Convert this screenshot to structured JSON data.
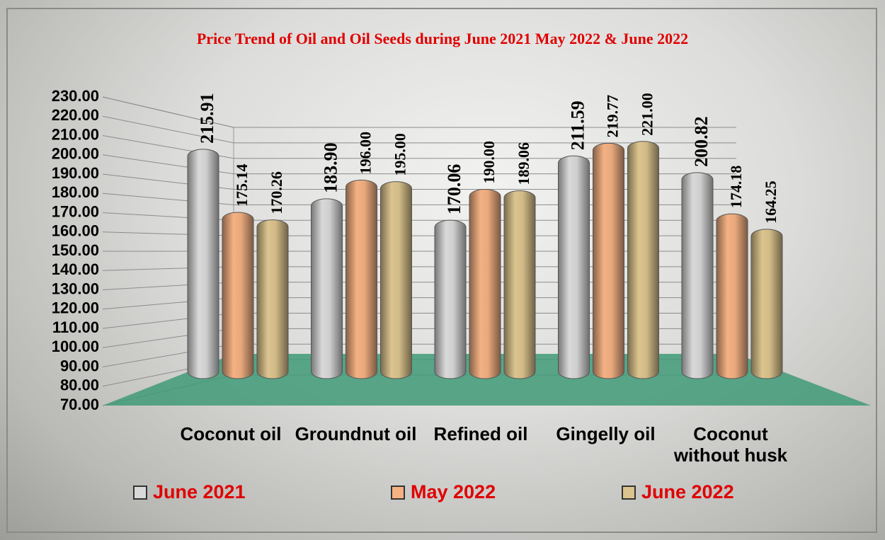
{
  "chart_data": {
    "type": "bar",
    "title": "Price Trend of Oil and Oil Seeds during  June 2021  May 2022  &  June 2022",
    "categories": [
      "Coconut oil",
      "Groundnut oil",
      "Refined oil",
      "Gingelly oil",
      "Coconut without husk"
    ],
    "series": [
      {
        "name": "June 2021",
        "color": "#d9d9d9",
        "values": [
          215.91,
          183.9,
          170.06,
          211.59,
          200.82
        ],
        "value_labels": [
          "215.91",
          "183.90",
          "170.06",
          "211.59",
          "200.82"
        ]
      },
      {
        "name": "May 2022",
        "color": "#f4b183",
        "values": [
          175.14,
          196.0,
          190.0,
          219.77,
          174.18
        ],
        "value_labels": [
          "175.14",
          "196.00",
          "190.00",
          "219.77",
          "174.18"
        ]
      },
      {
        "name": "June 2022",
        "color": "#dcc48e",
        "values": [
          170.26,
          195.0,
          189.06,
          221.0,
          164.25
        ],
        "value_labels": [
          "170.26",
          "195.00",
          "189.06",
          "221.00",
          "164.25"
        ]
      }
    ],
    "ylim": [
      70,
      230
    ],
    "yticks": [
      {
        "value": 70,
        "label": "70.00"
      },
      {
        "value": 80,
        "label": "80.00"
      },
      {
        "value": 90,
        "label": "90.00"
      },
      {
        "value": 100,
        "label": "100.00"
      },
      {
        "value": 110,
        "label": "110.00"
      },
      {
        "value": 120,
        "label": "120.00"
      },
      {
        "value": 130,
        "label": "130.00"
      },
      {
        "value": 140,
        "label": "140.00"
      },
      {
        "value": 150,
        "label": "150.00"
      },
      {
        "value": 160,
        "label": "160.00"
      },
      {
        "value": 170,
        "label": "170.00"
      },
      {
        "value": 180,
        "label": "180.00"
      },
      {
        "value": 190,
        "label": "190.00"
      },
      {
        "value": 200,
        "label": "200.00"
      },
      {
        "value": 210,
        "label": "210.00"
      },
      {
        "value": 220,
        "label": "220.00"
      },
      {
        "value": 230,
        "label": "230.00"
      }
    ],
    "grid": true
  }
}
